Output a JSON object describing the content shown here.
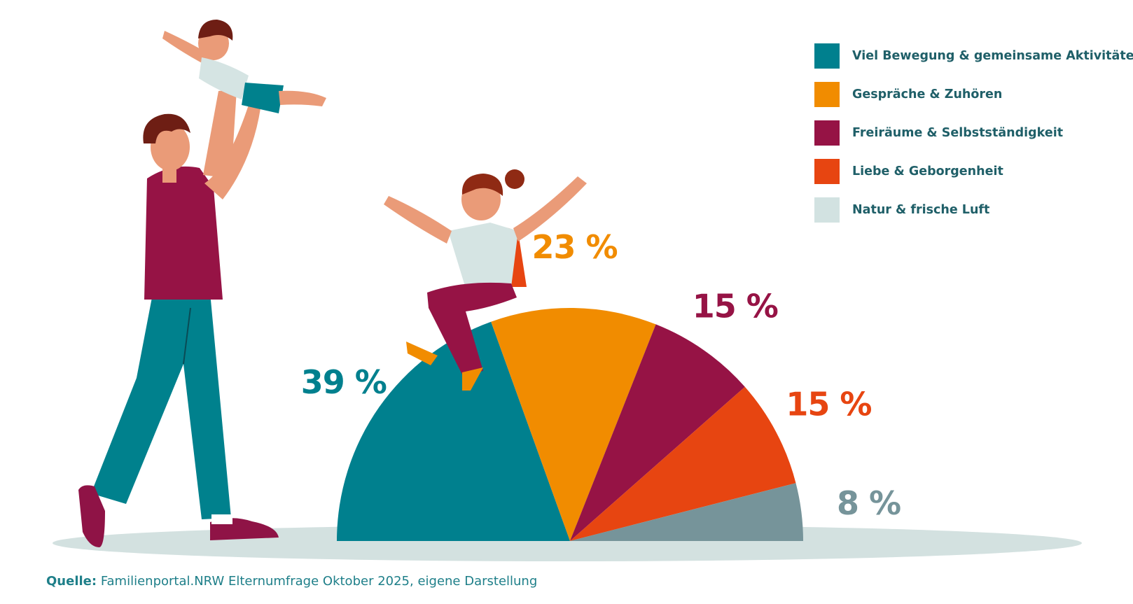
{
  "chart_data": {
    "type": "pie",
    "subtype": "half-donut (semicircle)",
    "slices": [
      {
        "label": "Viel Bewegung & gemeinsame Aktivitäten",
        "value": 39,
        "value_label": "39 %",
        "color": "#00808e"
      },
      {
        "label": "Gespräche & Zuhören",
        "value": 23,
        "value_label": "23 %",
        "color": "#f18c00"
      },
      {
        "label": "Freiräume & Selbstständigkeit",
        "value": 15,
        "value_label": "15 %",
        "color": "#961345"
      },
      {
        "label": "Liebe & Geborgenheit",
        "value": 15,
        "value_label": "15 %",
        "color": "#e74511"
      },
      {
        "label": "Natur & frische Luft",
        "value": 8,
        "value_label": "8 %",
        "color": "#76949a",
        "legend_color": "#d2e2e1"
      }
    ],
    "legend_position": "top-right"
  },
  "source": {
    "label": "Quelle:",
    "text": "Familienportal.NRW Elternumfrage Oktober 2025, eigene Darstellung"
  },
  "illustrations": [
    {
      "name": "father-lifting-child",
      "icon": "father-child-illustration"
    },
    {
      "name": "girl-sitting-on-chart",
      "icon": "girl-illustration"
    }
  ]
}
